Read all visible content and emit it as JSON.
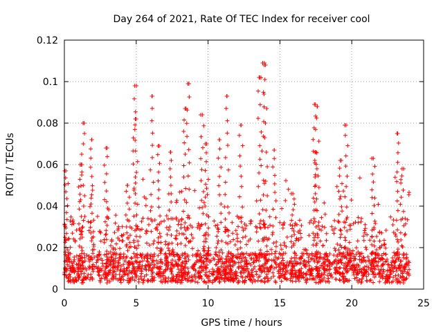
{
  "chart_data": {
    "type": "scatter",
    "title": "Day 264 of 2021, Rate Of TEC Index for receiver cool",
    "xlabel": "GPS time / hours",
    "ylabel": "ROTI / TECUs",
    "xlim": [
      0,
      25
    ],
    "ylim": [
      0,
      0.12
    ],
    "xticks": [
      0,
      5,
      10,
      15,
      20,
      25
    ],
    "xtick_labels": [
      "0",
      "5",
      "10",
      "15",
      "20",
      "25"
    ],
    "yticks": [
      0,
      0.02,
      0.04,
      0.06,
      0.08,
      0.1,
      0.12
    ],
    "ytick_labels": [
      "0",
      "0.02",
      "0.04",
      "0.06",
      "0.08",
      "0.1",
      "0.12"
    ],
    "grid": true,
    "marker": "+",
    "marker_color": "#ff0000",
    "x_coverage_hours": [
      0,
      24
    ],
    "typical_band": [
      0.003,
      0.035
    ],
    "spikes": [
      {
        "x": 0.1,
        "y": 0.057
      },
      {
        "x": 1.1,
        "y": 0.06
      },
      {
        "x": 1.3,
        "y": 0.08
      },
      {
        "x": 1.9,
        "y": 0.072
      },
      {
        "x": 2.9,
        "y": 0.068
      },
      {
        "x": 4.4,
        "y": 0.05
      },
      {
        "x": 4.9,
        "y": 0.098
      },
      {
        "x": 5.0,
        "y": 0.082
      },
      {
        "x": 6.1,
        "y": 0.093
      },
      {
        "x": 6.6,
        "y": 0.069
      },
      {
        "x": 7.4,
        "y": 0.066
      },
      {
        "x": 8.4,
        "y": 0.087
      },
      {
        "x": 8.6,
        "y": 0.099
      },
      {
        "x": 9.6,
        "y": 0.084
      },
      {
        "x": 9.9,
        "y": 0.07
      },
      {
        "x": 10.8,
        "y": 0.072
      },
      {
        "x": 11.3,
        "y": 0.093
      },
      {
        "x": 12.3,
        "y": 0.079
      },
      {
        "x": 13.6,
        "y": 0.102
      },
      {
        "x": 13.8,
        "y": 0.109
      },
      {
        "x": 14.0,
        "y": 0.108
      },
      {
        "x": 14.6,
        "y": 0.067
      },
      {
        "x": 15.9,
        "y": 0.046
      },
      {
        "x": 17.4,
        "y": 0.089
      },
      {
        "x": 17.6,
        "y": 0.088
      },
      {
        "x": 17.5,
        "y": 0.066
      },
      {
        "x": 19.2,
        "y": 0.062
      },
      {
        "x": 19.6,
        "y": 0.079
      },
      {
        "x": 21.5,
        "y": 0.063
      },
      {
        "x": 23.2,
        "y": 0.075
      },
      {
        "x": 23.5,
        "y": 0.058
      }
    ]
  }
}
